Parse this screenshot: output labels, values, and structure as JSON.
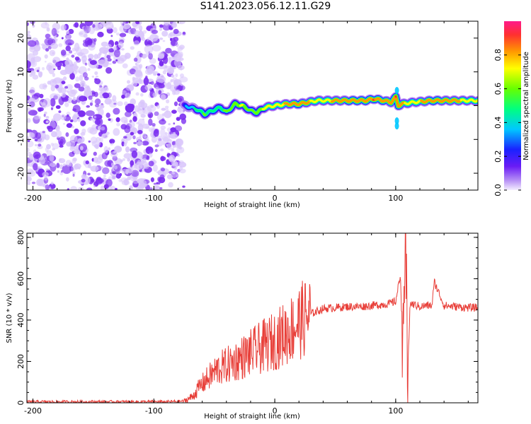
{
  "title": "S141.2023.056.12.11.G29",
  "colors": {
    "line": "#e8403a",
    "blob": "#7a2cf0",
    "blob_light": "#d9c6fb",
    "colorbar": [
      "#f4eeff",
      "#b48cf5",
      "#6a1cf5",
      "#1a22ff",
      "#00c8ff",
      "#00ff80",
      "#66ff00",
      "#ffff00",
      "#ff9900",
      "#ff3030",
      "#ff1a8a"
    ]
  },
  "chart_data": [
    {
      "type": "heatmap",
      "title": "",
      "xlabel": "Height of straight line (km)",
      "ylabel": "Frequency (Hz)",
      "xlim": [
        -205,
        168
      ],
      "ylim": [
        -25,
        25
      ],
      "x_ticks": [
        -200,
        -100,
        0,
        100
      ],
      "y_ticks": [
        20,
        10,
        0,
        -10,
        -20
      ],
      "colorbar": {
        "label": "Normalized spectral amplitude",
        "range": [
          0,
          1
        ],
        "ticks": [
          0.0,
          0.2,
          0.4,
          0.6,
          0.8
        ]
      },
      "noise_region_x": [
        -205,
        -75
      ],
      "ridge": {
        "x": [
          -75,
          -65,
          -58,
          -52,
          -45,
          -40,
          -33,
          -27,
          -20,
          -15,
          -8,
          0,
          10,
          20,
          35,
          50,
          65,
          75,
          82,
          90,
          96,
          100,
          102,
          105,
          115,
          130,
          150,
          168
        ],
        "freq": [
          0,
          -1,
          -2.5,
          -1.5,
          -0.5,
          -2,
          0.5,
          0,
          -1.5,
          -2,
          -0.5,
          0,
          0.5,
          0.5,
          1.5,
          1.5,
          1.5,
          1.5,
          2,
          1.5,
          1,
          2.5,
          0,
          0.5,
          1,
          1.5,
          1.5,
          1.5
        ],
        "amplitude": [
          0.35,
          0.5,
          0.6,
          0.5,
          0.55,
          0.6,
          0.65,
          0.7,
          0.6,
          0.65,
          0.7,
          0.75,
          0.8,
          0.85,
          0.75,
          0.8,
          0.85,
          0.85,
          0.9,
          0.85,
          0.8,
          0.9,
          0.85,
          0.8,
          0.75,
          0.85,
          0.8,
          0.75
        ]
      }
    },
    {
      "type": "line",
      "title": "",
      "xlabel": "Height of straight line (km)",
      "ylabel": "SNR (10 * v/v)",
      "xlim": [
        -205,
        168
      ],
      "ylim": [
        0,
        820
      ],
      "x_ticks": [
        -200,
        -100,
        0,
        100
      ],
      "y_ticks": [
        0,
        200,
        400,
        600,
        800
      ],
      "series": [
        {
          "x": [
            -205,
            -180,
            -150,
            -120,
            -90,
            -75,
            -68,
            -62,
            -55,
            -48,
            -40,
            -30,
            -20,
            -10,
            0,
            10,
            20,
            30,
            40,
            50,
            60,
            70,
            80,
            90,
            95,
            100,
            104,
            106,
            108,
            110,
            112,
            120,
            125,
            130,
            132,
            140,
            150,
            160,
            168
          ],
          "values": [
            5,
            5,
            5,
            5,
            5,
            8,
            30,
            80,
            120,
            160,
            180,
            210,
            240,
            270,
            300,
            340,
            390,
            430,
            455,
            460,
            465,
            465,
            470,
            475,
            480,
            490,
            620,
            200,
            810,
            150,
            480,
            465,
            470,
            470,
            585,
            470,
            465,
            460,
            460
          ]
        }
      ]
    }
  ]
}
